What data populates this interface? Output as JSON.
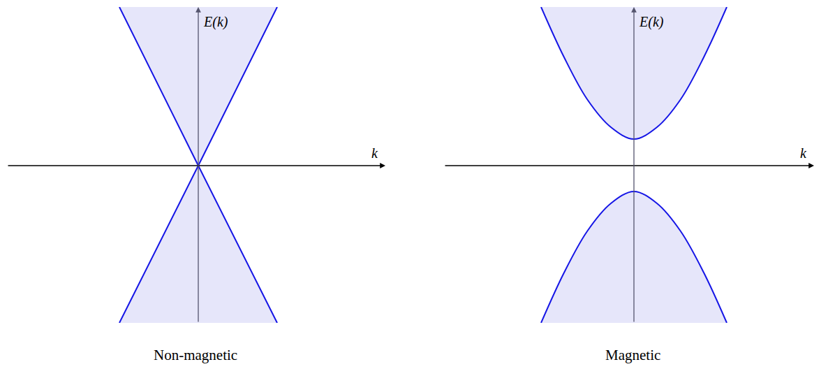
{
  "chart_data": [
    {
      "type": "line",
      "title": "Non-magnetic",
      "x_label": "k",
      "y_label": "E(k)",
      "xlim": [
        -2.74,
        2.68
      ],
      "ylim": [
        -2.25,
        2.27
      ],
      "tick_labels": false,
      "grid": false,
      "x": [
        -1.13,
        0,
        1.13
      ],
      "series": [
        {
          "color": "#1515e6",
          "values": [
            2.27,
            0,
            2.27
          ]
        },
        {
          "color": "#1515e6",
          "values": [
            -2.25,
            0,
            -2.25
          ]
        }
      ]
    },
    {
      "type": "line",
      "title": "Magnetic",
      "x_label": "k",
      "y_label": "E(k)",
      "xlim": [
        -2.72,
        2.58
      ],
      "ylim": [
        -2.25,
        2.27
      ],
      "tick_labels": false,
      "grid": false,
      "x": [
        -1.33,
        -1.0,
        -0.67,
        -0.33,
        0,
        0.33,
        0.67,
        1.0,
        1.33
      ],
      "series": [
        {
          "color": "#1515e6",
          "values": [
            2.27,
            1.55,
            0.95,
            0.55,
            0.38,
            0.55,
            0.95,
            1.55,
            2.27
          ]
        },
        {
          "color": "#1515e6",
          "values": [
            -2.25,
            -1.53,
            -0.94,
            -0.54,
            -0.37,
            -0.54,
            -0.94,
            -1.53,
            -2.25
          ]
        }
      ]
    }
  ]
}
